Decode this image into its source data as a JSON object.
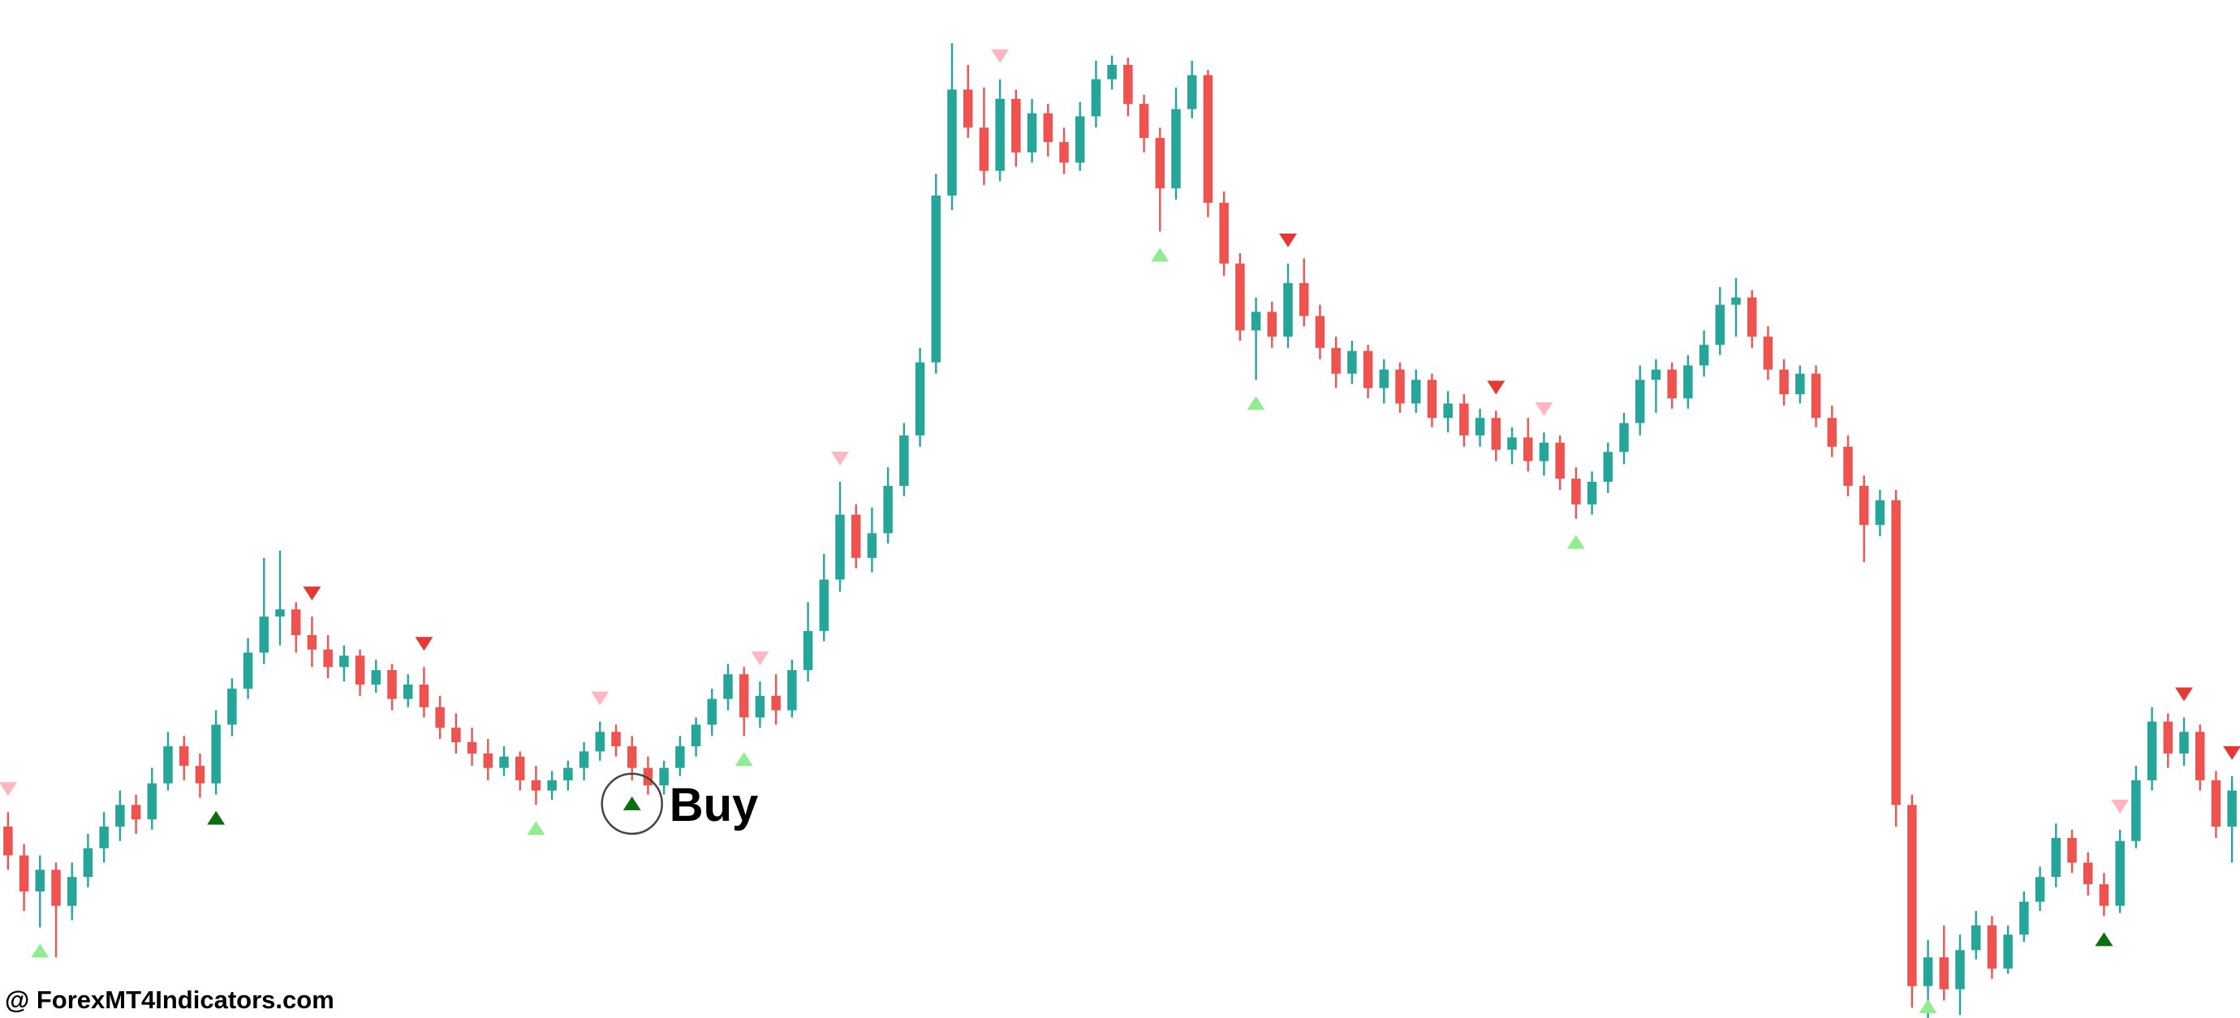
{
  "watermark": {
    "text": "@ ForexMT4Indicators.com"
  },
  "chart_data": {
    "type": "candlestick",
    "title": "",
    "xlabel": "",
    "ylabel": "",
    "grid": false,
    "axes_visible": false,
    "background": "#ffffff",
    "ylim": [
      0,
      100
    ],
    "candle_count": 140,
    "colors": {
      "up": "#26a69a",
      "down": "#ef5350",
      "marker_buy_strong": "#0d6e0d",
      "marker_buy_weak": "#90ee90",
      "marker_sell_strong": "#e53935",
      "marker_sell_weak": "#ffb6c1",
      "annotation_text": "#000000",
      "circle_stroke": "#444444"
    },
    "candles": [
      [
        19.7,
        21.1,
        15.5,
        16.9
      ],
      [
        16.9,
        18.0,
        11.5,
        13.4
      ],
      [
        13.4,
        16.9,
        9.9,
        15.5
      ],
      [
        15.5,
        16.2,
        7.0,
        12.0
      ],
      [
        12.0,
        16.2,
        10.6,
        14.8
      ],
      [
        14.8,
        19.0,
        13.8,
        17.6
      ],
      [
        17.6,
        21.1,
        16.2,
        19.7
      ],
      [
        19.7,
        23.2,
        18.3,
        21.8
      ],
      [
        21.8,
        22.8,
        19.0,
        20.4
      ],
      [
        20.4,
        25.4,
        19.4,
        23.9
      ],
      [
        23.9,
        28.9,
        23.2,
        27.5
      ],
      [
        27.5,
        28.5,
        24.2,
        25.6
      ],
      [
        25.6,
        26.8,
        22.5,
        23.9
      ],
      [
        23.9,
        31.0,
        22.8,
        29.6
      ],
      [
        29.6,
        34.1,
        28.5,
        33.1
      ],
      [
        33.1,
        38.0,
        32.1,
        36.6
      ],
      [
        36.6,
        45.8,
        35.5,
        40.1
      ],
      [
        40.1,
        46.5,
        37.3,
        40.8
      ],
      [
        40.8,
        41.5,
        36.6,
        38.3
      ],
      [
        38.3,
        40.1,
        35.2,
        36.9
      ],
      [
        36.9,
        38.3,
        34.1,
        35.2
      ],
      [
        35.2,
        37.3,
        33.8,
        36.3
      ],
      [
        36.3,
        36.9,
        32.4,
        33.5
      ],
      [
        33.5,
        35.9,
        32.7,
        34.9
      ],
      [
        34.9,
        35.5,
        31.0,
        32.1
      ],
      [
        32.1,
        34.5,
        31.3,
        33.5
      ],
      [
        33.5,
        35.2,
        30.3,
        31.3
      ],
      [
        31.3,
        32.4,
        28.2,
        29.3
      ],
      [
        29.3,
        30.7,
        26.8,
        27.9
      ],
      [
        27.9,
        29.3,
        25.6,
        26.8
      ],
      [
        26.8,
        28.2,
        24.2,
        25.4
      ],
      [
        25.4,
        27.5,
        24.6,
        26.5
      ],
      [
        26.5,
        27.0,
        23.2,
        24.2
      ],
      [
        24.2,
        25.6,
        21.8,
        23.2
      ],
      [
        23.2,
        25.1,
        22.3,
        24.2
      ],
      [
        24.2,
        26.1,
        23.2,
        25.4
      ],
      [
        25.4,
        27.9,
        24.2,
        27.0
      ],
      [
        27.0,
        29.9,
        26.1,
        28.9
      ],
      [
        28.9,
        29.6,
        26.5,
        27.5
      ],
      [
        27.5,
        28.5,
        24.2,
        25.4
      ],
      [
        25.4,
        26.5,
        22.8,
        23.7
      ],
      [
        23.7,
        26.1,
        22.8,
        25.4
      ],
      [
        25.4,
        28.5,
        24.6,
        27.5
      ],
      [
        27.5,
        30.3,
        26.5,
        29.6
      ],
      [
        29.6,
        33.1,
        28.5,
        32.1
      ],
      [
        32.1,
        35.5,
        31.0,
        34.5
      ],
      [
        34.5,
        35.2,
        28.5,
        30.3
      ],
      [
        30.3,
        33.8,
        29.3,
        32.4
      ],
      [
        32.4,
        34.5,
        29.6,
        31.0
      ],
      [
        31.0,
        35.9,
        30.3,
        34.9
      ],
      [
        34.9,
        41.5,
        33.8,
        38.7
      ],
      [
        38.7,
        46.2,
        37.7,
        43.7
      ],
      [
        43.7,
        53.2,
        42.5,
        50.0
      ],
      [
        50.0,
        51.0,
        44.8,
        45.8
      ],
      [
        45.8,
        50.7,
        44.4,
        48.2
      ],
      [
        48.2,
        54.6,
        47.2,
        52.8
      ],
      [
        52.8,
        58.9,
        51.8,
        57.7
      ],
      [
        57.7,
        66.2,
        56.6,
        64.8
      ],
      [
        64.8,
        83.1,
        63.7,
        81.0
      ],
      [
        81.0,
        95.8,
        79.6,
        91.3
      ],
      [
        91.3,
        93.7,
        86.6,
        87.6
      ],
      [
        87.6,
        91.5,
        82.0,
        83.4
      ],
      [
        83.4,
        92.3,
        82.4,
        90.4
      ],
      [
        90.4,
        91.3,
        83.8,
        85.2
      ],
      [
        85.2,
        90.4,
        84.2,
        89.0
      ],
      [
        89.0,
        89.9,
        84.8,
        86.2
      ],
      [
        86.2,
        87.6,
        83.1,
        84.2
      ],
      [
        84.2,
        90.1,
        83.4,
        88.7
      ],
      [
        88.7,
        94.1,
        87.6,
        92.3
      ],
      [
        92.3,
        94.6,
        91.3,
        93.7
      ],
      [
        93.7,
        94.4,
        88.7,
        89.9
      ],
      [
        89.9,
        90.8,
        85.2,
        86.6
      ],
      [
        86.6,
        87.6,
        77.5,
        81.7
      ],
      [
        81.7,
        91.5,
        80.6,
        89.4
      ],
      [
        89.4,
        94.1,
        88.5,
        92.7
      ],
      [
        92.7,
        93.2,
        78.9,
        80.3
      ],
      [
        80.3,
        81.4,
        73.2,
        74.4
      ],
      [
        74.4,
        75.4,
        66.9,
        67.9
      ],
      [
        67.9,
        71.1,
        63.1,
        69.7
      ],
      [
        69.7,
        70.7,
        66.2,
        67.3
      ],
      [
        67.3,
        74.4,
        66.2,
        72.5
      ],
      [
        72.5,
        74.9,
        68.3,
        69.3
      ],
      [
        69.3,
        70.4,
        65.1,
        66.2
      ],
      [
        66.2,
        67.3,
        62.3,
        63.7
      ],
      [
        63.7,
        66.9,
        62.7,
        65.9
      ],
      [
        65.9,
        66.5,
        61.3,
        62.3
      ],
      [
        62.3,
        65.1,
        60.8,
        64.1
      ],
      [
        64.1,
        64.8,
        59.9,
        60.8
      ],
      [
        60.8,
        64.1,
        59.9,
        63.1
      ],
      [
        63.1,
        63.7,
        58.5,
        59.4
      ],
      [
        59.4,
        62.0,
        58.0,
        60.8
      ],
      [
        60.8,
        61.7,
        56.6,
        57.7
      ],
      [
        57.7,
        60.3,
        56.6,
        59.4
      ],
      [
        59.4,
        60.1,
        55.2,
        56.3
      ],
      [
        56.3,
        58.5,
        54.9,
        57.5
      ],
      [
        57.5,
        59.4,
        54.2,
        55.2
      ],
      [
        55.2,
        58.0,
        53.8,
        57.0
      ],
      [
        57.0,
        57.7,
        52.4,
        53.5
      ],
      [
        53.5,
        54.6,
        49.6,
        51.0
      ],
      [
        51.0,
        54.2,
        50.0,
        53.2
      ],
      [
        53.2,
        57.0,
        52.1,
        56.1
      ],
      [
        56.1,
        59.9,
        54.9,
        58.9
      ],
      [
        58.9,
        64.5,
        57.7,
        63.1
      ],
      [
        63.1,
        65.1,
        59.9,
        64.1
      ],
      [
        64.1,
        64.8,
        60.3,
        61.3
      ],
      [
        61.3,
        65.5,
        60.3,
        64.5
      ],
      [
        64.5,
        67.9,
        63.4,
        66.5
      ],
      [
        66.5,
        72.1,
        65.5,
        70.4
      ],
      [
        70.4,
        73.0,
        67.3,
        71.1
      ],
      [
        71.1,
        71.8,
        66.2,
        67.3
      ],
      [
        67.3,
        68.3,
        63.1,
        64.1
      ],
      [
        64.1,
        65.1,
        60.6,
        61.7
      ],
      [
        61.7,
        64.5,
        60.8,
        63.7
      ],
      [
        63.7,
        64.5,
        58.5,
        59.4
      ],
      [
        59.4,
        60.6,
        55.6,
        56.6
      ],
      [
        56.6,
        57.7,
        51.8,
        52.8
      ],
      [
        52.8,
        53.8,
        45.4,
        49.0
      ],
      [
        49.0,
        52.4,
        47.9,
        51.4
      ],
      [
        51.4,
        52.4,
        19.7,
        21.8
      ],
      [
        21.8,
        22.8,
        2.1,
        4.2
      ],
      [
        4.2,
        8.7,
        0.7,
        7.0
      ],
      [
        7.0,
        10.1,
        2.8,
        3.9
      ],
      [
        3.9,
        9.2,
        1.4,
        7.7
      ],
      [
        7.7,
        11.5,
        6.8,
        10.1
      ],
      [
        10.1,
        11.0,
        4.9,
        5.9
      ],
      [
        5.9,
        10.1,
        5.4,
        9.2
      ],
      [
        9.2,
        13.4,
        8.5,
        12.4
      ],
      [
        12.4,
        15.8,
        11.5,
        14.8
      ],
      [
        14.8,
        20.0,
        13.8,
        18.6
      ],
      [
        18.6,
        19.4,
        15.2,
        16.2
      ],
      [
        16.2,
        17.2,
        13.0,
        14.1
      ],
      [
        14.1,
        15.2,
        11.0,
        12.0
      ],
      [
        12.0,
        19.4,
        11.3,
        18.3
      ],
      [
        18.3,
        25.6,
        17.6,
        24.2
      ],
      [
        24.2,
        31.3,
        23.2,
        29.9
      ],
      [
        29.9,
        30.7,
        25.4,
        26.8
      ],
      [
        26.8,
        30.3,
        25.6,
        28.9
      ],
      [
        28.9,
        29.6,
        23.2,
        24.2
      ],
      [
        24.2,
        25.1,
        18.6,
        19.7
      ],
      [
        19.7,
        24.6,
        16.2,
        23.2
      ]
    ],
    "markers": [
      {
        "index": 0,
        "signal": "sell",
        "strength": "weak"
      },
      {
        "index": 2,
        "signal": "buy",
        "strength": "weak"
      },
      {
        "index": 13,
        "signal": "buy",
        "strength": "strong"
      },
      {
        "index": 19,
        "signal": "sell",
        "strength": "strong"
      },
      {
        "index": 26,
        "signal": "sell",
        "strength": "strong"
      },
      {
        "index": 33,
        "signal": "buy",
        "strength": "weak"
      },
      {
        "index": 37,
        "signal": "sell",
        "strength": "weak"
      },
      {
        "index": 39,
        "signal": "buy",
        "strength": "strong",
        "circled": true,
        "label": "Buy"
      },
      {
        "index": 46,
        "signal": "buy",
        "strength": "weak"
      },
      {
        "index": 47,
        "signal": "sell",
        "strength": "weak"
      },
      {
        "index": 52,
        "signal": "sell",
        "strength": "weak"
      },
      {
        "index": 62,
        "signal": "sell",
        "strength": "weak"
      },
      {
        "index": 72,
        "signal": "buy",
        "strength": "weak"
      },
      {
        "index": 78,
        "signal": "buy",
        "strength": "weak"
      },
      {
        "index": 80,
        "signal": "sell",
        "strength": "strong"
      },
      {
        "index": 93,
        "signal": "sell",
        "strength": "strong"
      },
      {
        "index": 96,
        "signal": "sell",
        "strength": "weak"
      },
      {
        "index": 98,
        "signal": "buy",
        "strength": "weak"
      },
      {
        "index": 120,
        "signal": "buy",
        "strength": "weak"
      },
      {
        "index": 131,
        "signal": "buy",
        "strength": "strong"
      },
      {
        "index": 132,
        "signal": "sell",
        "strength": "weak"
      },
      {
        "index": 136,
        "signal": "sell",
        "strength": "strong"
      },
      {
        "index": 139,
        "signal": "sell",
        "strength": "strong"
      }
    ],
    "annotations": {
      "buy_label": "Buy"
    }
  }
}
